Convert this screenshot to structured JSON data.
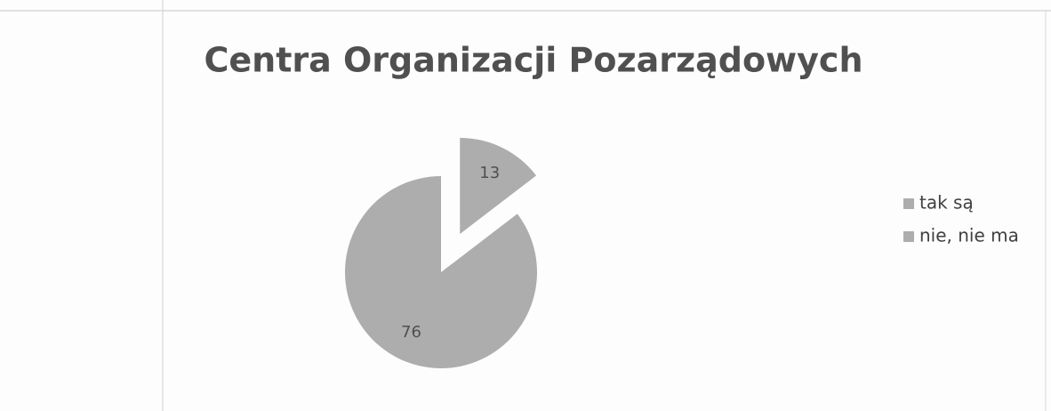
{
  "chart_data": {
    "type": "pie",
    "title": "Centra Organizacji Pozarządowych",
    "categories": [
      "tak są",
      "nie, nie ma"
    ],
    "values": [
      13,
      76
    ],
    "colors": [
      "#adadad",
      "#adadad"
    ],
    "exploded": [
      true,
      false
    ],
    "legend": "right"
  }
}
